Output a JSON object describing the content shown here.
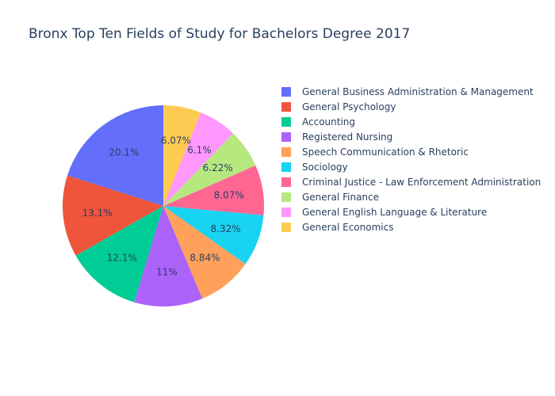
{
  "chart_data": {
    "type": "pie",
    "title": "Bronx Top Ten Fields of Study for Bachelors Degree 2017",
    "labels": [
      "General Business Administration & Management",
      "General Psychology",
      "Accounting",
      "Registered Nursing",
      "Speech Communication & Rhetoric",
      "Sociology",
      "Criminal Justice - Law Enforcement Administration",
      "General Finance",
      "General English Language & Literature",
      "General Economics"
    ],
    "values": [
      20.1,
      13.1,
      12.1,
      11,
      8.84,
      8.32,
      8.07,
      6.22,
      6.1,
      6.07
    ],
    "value_labels": [
      "20.1%",
      "13.1%",
      "12.1%",
      "11%",
      "8.84%",
      "8.32%",
      "8.07%",
      "6.22%",
      "6.1%",
      "6.07%"
    ],
    "colors": [
      "#636efa",
      "#EF553B",
      "#00cc96",
      "#ab63fa",
      "#FFA15A",
      "#19d3f3",
      "#FF6692",
      "#B6E880",
      "#FF97FF",
      "#FECB52"
    ],
    "direction": "counterclockwise",
    "legend_position": "right"
  }
}
